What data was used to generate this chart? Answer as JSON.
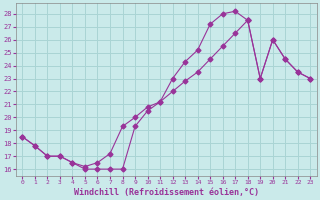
{
  "xlabel": "Windchill (Refroidissement éolien,°C)",
  "bg_color": "#caeaea",
  "grid_color": "#aad4d4",
  "line_color": "#993399",
  "xlim": [
    -0.5,
    23.5
  ],
  "ylim": [
    15.5,
    28.8
  ],
  "yticks": [
    16,
    17,
    18,
    19,
    20,
    21,
    22,
    23,
    24,
    25,
    26,
    27,
    28
  ],
  "xticks": [
    0,
    1,
    2,
    3,
    4,
    5,
    6,
    7,
    8,
    9,
    10,
    11,
    12,
    13,
    14,
    15,
    16,
    17,
    18,
    19,
    20,
    21,
    22,
    23
  ],
  "line1_x": [
    0,
    1,
    2,
    3,
    4,
    5,
    6,
    7,
    8,
    9,
    10,
    11,
    12,
    13,
    14,
    15,
    16,
    17,
    18
  ],
  "line1_y": [
    18.5,
    17.8,
    17.0,
    17.0,
    16.5,
    16.0,
    16.0,
    16.0,
    16.0,
    19.3,
    20.5,
    21.2,
    23.0,
    24.3,
    25.2,
    27.2,
    28.0,
    28.2,
    27.5
  ],
  "line2_x": [
    0,
    1,
    2,
    3,
    4,
    5,
    6,
    7,
    8,
    9,
    10,
    11,
    12,
    13,
    14,
    15,
    16,
    17,
    18,
    19,
    20,
    21,
    22,
    23
  ],
  "line2_y": [
    18.5,
    17.8,
    17.0,
    17.0,
    16.5,
    16.2,
    16.5,
    17.2,
    19.3,
    20.0,
    20.8,
    21.2,
    22.0,
    22.8,
    23.5,
    24.5,
    25.5,
    26.5,
    27.5,
    23.0,
    26.0,
    24.5,
    23.5,
    23.0
  ],
  "line3_x": [
    18,
    19,
    20,
    21,
    22,
    23
  ],
  "line3_y": [
    27.5,
    23.0,
    26.0,
    24.5,
    23.5,
    23.0
  ]
}
